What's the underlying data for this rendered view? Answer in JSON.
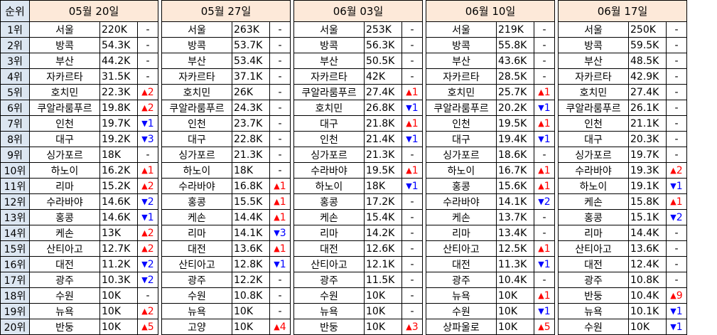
{
  "header": {
    "rank_label": "순위",
    "weeks": [
      "05월 20일",
      "05월 27일",
      "06월 03일",
      "06월 10일",
      "06월 17일"
    ]
  },
  "rows": [
    {
      "rank": "1위",
      "weeks": [
        {
          "city": "서울",
          "value": "220K",
          "change": "-",
          "dir": "none"
        },
        {
          "city": "서울",
          "value": "263K",
          "change": "-",
          "dir": "none"
        },
        {
          "city": "서울",
          "value": "253K",
          "change": "-",
          "dir": "none"
        },
        {
          "city": "서울",
          "value": "219K",
          "change": "-",
          "dir": "none"
        },
        {
          "city": "서울",
          "value": "250K",
          "change": "-",
          "dir": "none"
        }
      ]
    },
    {
      "rank": "2위",
      "weeks": [
        {
          "city": "방콕",
          "value": "54.3K",
          "change": "-",
          "dir": "none"
        },
        {
          "city": "방콕",
          "value": "53.7K",
          "change": "-",
          "dir": "none"
        },
        {
          "city": "방콕",
          "value": "56.3K",
          "change": "-",
          "dir": "none"
        },
        {
          "city": "방콕",
          "value": "55.8K",
          "change": "-",
          "dir": "none"
        },
        {
          "city": "방콕",
          "value": "59.5K",
          "change": "-",
          "dir": "none"
        }
      ]
    },
    {
      "rank": "3위",
      "weeks": [
        {
          "city": "부산",
          "value": "44.2K",
          "change": "-",
          "dir": "none"
        },
        {
          "city": "부산",
          "value": "53.4K",
          "change": "-",
          "dir": "none"
        },
        {
          "city": "부산",
          "value": "50.5K",
          "change": "-",
          "dir": "none"
        },
        {
          "city": "부산",
          "value": "43.6K",
          "change": "-",
          "dir": "none"
        },
        {
          "city": "부산",
          "value": "48.5K",
          "change": "-",
          "dir": "none"
        }
      ]
    },
    {
      "rank": "4위",
      "weeks": [
        {
          "city": "자카르타",
          "value": "31.5K",
          "change": "-",
          "dir": "none"
        },
        {
          "city": "자카르타",
          "value": "37.1K",
          "change": "-",
          "dir": "none"
        },
        {
          "city": "자카르타",
          "value": "42K",
          "change": "-",
          "dir": "none"
        },
        {
          "city": "자카르타",
          "value": "28.5K",
          "change": "-",
          "dir": "none"
        },
        {
          "city": "자카르타",
          "value": "42.9K",
          "change": "-",
          "dir": "none"
        }
      ]
    },
    {
      "rank": "5위",
      "weeks": [
        {
          "city": "호치민",
          "value": "22.3K",
          "change": "2",
          "dir": "up"
        },
        {
          "city": "호치민",
          "value": "26K",
          "change": "-",
          "dir": "none"
        },
        {
          "city": "쿠알라룸푸르",
          "value": "27.4K",
          "change": "1",
          "dir": "up"
        },
        {
          "city": "호치민",
          "value": "25.7K",
          "change": "1",
          "dir": "up"
        },
        {
          "city": "호치민",
          "value": "27.4K",
          "change": "-",
          "dir": "none"
        }
      ]
    },
    {
      "rank": "6위",
      "weeks": [
        {
          "city": "쿠알라룸푸르",
          "value": "19.8K",
          "change": "2",
          "dir": "up"
        },
        {
          "city": "쿠알라룸푸르",
          "value": "24.3K",
          "change": "-",
          "dir": "none"
        },
        {
          "city": "호치민",
          "value": "26.8K",
          "change": "1",
          "dir": "down"
        },
        {
          "city": "쿠알라룸푸르",
          "value": "20.2K",
          "change": "1",
          "dir": "down"
        },
        {
          "city": "쿠알라룸푸르",
          "value": "26.1K",
          "change": "-",
          "dir": "none"
        }
      ]
    },
    {
      "rank": "7위",
      "weeks": [
        {
          "city": "인천",
          "value": "19.7K",
          "change": "1",
          "dir": "down"
        },
        {
          "city": "인천",
          "value": "23.7K",
          "change": "-",
          "dir": "none"
        },
        {
          "city": "대구",
          "value": "21.8K",
          "change": "1",
          "dir": "up"
        },
        {
          "city": "인천",
          "value": "19.5K",
          "change": "1",
          "dir": "up"
        },
        {
          "city": "인천",
          "value": "21.1K",
          "change": "-",
          "dir": "none"
        }
      ]
    },
    {
      "rank": "8위",
      "weeks": [
        {
          "city": "대구",
          "value": "19.2K",
          "change": "3",
          "dir": "down"
        },
        {
          "city": "대구",
          "value": "22.8K",
          "change": "-",
          "dir": "none"
        },
        {
          "city": "인천",
          "value": "21.4K",
          "change": "1",
          "dir": "down"
        },
        {
          "city": "대구",
          "value": "19.4K",
          "change": "1",
          "dir": "down"
        },
        {
          "city": "대구",
          "value": "20.3K",
          "change": "-",
          "dir": "none"
        }
      ]
    },
    {
      "rank": "9위",
      "weeks": [
        {
          "city": "싱가포르",
          "value": "18K",
          "change": "-",
          "dir": "none"
        },
        {
          "city": "싱가포르",
          "value": "21.3K",
          "change": "-",
          "dir": "none"
        },
        {
          "city": "싱가포르",
          "value": "21.3K",
          "change": "-",
          "dir": "none"
        },
        {
          "city": "싱가포르",
          "value": "18.6K",
          "change": "-",
          "dir": "none"
        },
        {
          "city": "싱가포르",
          "value": "19.7K",
          "change": "-",
          "dir": "none"
        }
      ]
    },
    {
      "rank": "10위",
      "weeks": [
        {
          "city": "하노이",
          "value": "16.2K",
          "change": "1",
          "dir": "up"
        },
        {
          "city": "하노이",
          "value": "18K",
          "change": "-",
          "dir": "none"
        },
        {
          "city": "수라바야",
          "value": "19.5K",
          "change": "1",
          "dir": "up"
        },
        {
          "city": "하노이",
          "value": "16.7K",
          "change": "1",
          "dir": "up"
        },
        {
          "city": "수라바야",
          "value": "19.3K",
          "change": "2",
          "dir": "up"
        }
      ]
    },
    {
      "rank": "11위",
      "weeks": [
        {
          "city": "리마",
          "value": "15.2K",
          "change": "2",
          "dir": "up"
        },
        {
          "city": "수라바야",
          "value": "16.8K",
          "change": "1",
          "dir": "up"
        },
        {
          "city": "하노이",
          "value": "18K",
          "change": "1",
          "dir": "down"
        },
        {
          "city": "홍콩",
          "value": "15.6K",
          "change": "1",
          "dir": "up"
        },
        {
          "city": "하노이",
          "value": "19.1K",
          "change": "1",
          "dir": "down"
        }
      ]
    },
    {
      "rank": "12위",
      "weeks": [
        {
          "city": "수라바야",
          "value": "14.6K",
          "change": "2",
          "dir": "down"
        },
        {
          "city": "홍콩",
          "value": "15.5K",
          "change": "1",
          "dir": "up"
        },
        {
          "city": "홍콩",
          "value": "17.2K",
          "change": "-",
          "dir": "none"
        },
        {
          "city": "수라바야",
          "value": "14.1K",
          "change": "2",
          "dir": "down"
        },
        {
          "city": "케손",
          "value": "15.8K",
          "change": "1",
          "dir": "up"
        }
      ]
    },
    {
      "rank": "13위",
      "weeks": [
        {
          "city": "홍콩",
          "value": "14.6K",
          "change": "1",
          "dir": "down"
        },
        {
          "city": "케손",
          "value": "14.4K",
          "change": "1",
          "dir": "up"
        },
        {
          "city": "케손",
          "value": "15.4K",
          "change": "-",
          "dir": "none"
        },
        {
          "city": "케손",
          "value": "13.7K",
          "change": "-",
          "dir": "none"
        },
        {
          "city": "홍콩",
          "value": "15.1K",
          "change": "2",
          "dir": "down"
        }
      ]
    },
    {
      "rank": "14위",
      "weeks": [
        {
          "city": "케손",
          "value": "13K",
          "change": "2",
          "dir": "up"
        },
        {
          "city": "리마",
          "value": "14.1K",
          "change": "3",
          "dir": "down"
        },
        {
          "city": "리마",
          "value": "14.2K",
          "change": "-",
          "dir": "none"
        },
        {
          "city": "리마",
          "value": "13.4K",
          "change": "-",
          "dir": "none"
        },
        {
          "city": "리마",
          "value": "14.4K",
          "change": "-",
          "dir": "none"
        }
      ]
    },
    {
      "rank": "15위",
      "weeks": [
        {
          "city": "산티아고",
          "value": "12.7K",
          "change": "2",
          "dir": "up"
        },
        {
          "city": "대전",
          "value": "13.6K",
          "change": "1",
          "dir": "up"
        },
        {
          "city": "대전",
          "value": "12.6K",
          "change": "-",
          "dir": "none"
        },
        {
          "city": "산티아고",
          "value": "12.5K",
          "change": "1",
          "dir": "up"
        },
        {
          "city": "산티아고",
          "value": "13.6K",
          "change": "-",
          "dir": "none"
        }
      ]
    },
    {
      "rank": "16위",
      "weeks": [
        {
          "city": "대전",
          "value": "11.2K",
          "change": "2",
          "dir": "down"
        },
        {
          "city": "산티아고",
          "value": "12.8K",
          "change": "1",
          "dir": "down"
        },
        {
          "city": "산티아고",
          "value": "12.1K",
          "change": "-",
          "dir": "none"
        },
        {
          "city": "대전",
          "value": "11.3K",
          "change": "1",
          "dir": "down"
        },
        {
          "city": "대전",
          "value": "12.4K",
          "change": "-",
          "dir": "none"
        }
      ]
    },
    {
      "rank": "17위",
      "weeks": [
        {
          "city": "광주",
          "value": "10.3K",
          "change": "2",
          "dir": "down"
        },
        {
          "city": "광주",
          "value": "12.2K",
          "change": "-",
          "dir": "none"
        },
        {
          "city": "광주",
          "value": "11.5K",
          "change": "-",
          "dir": "none"
        },
        {
          "city": "광주",
          "value": "10.4K",
          "change": "-",
          "dir": "none"
        },
        {
          "city": "광주",
          "value": "10.8K",
          "change": "-",
          "dir": "none"
        }
      ]
    },
    {
      "rank": "18위",
      "weeks": [
        {
          "city": "수원",
          "value": "10K",
          "change": "-",
          "dir": "none"
        },
        {
          "city": "수원",
          "value": "10.8K",
          "change": "-",
          "dir": "none"
        },
        {
          "city": "수원",
          "value": "10K",
          "change": "-",
          "dir": "none"
        },
        {
          "city": "뉴욕",
          "value": "10K",
          "change": "1",
          "dir": "up"
        },
        {
          "city": "반둥",
          "value": "10.4K",
          "change": "9",
          "dir": "up"
        }
      ]
    },
    {
      "rank": "19위",
      "weeks": [
        {
          "city": "뉴욕",
          "value": "10K",
          "change": "2",
          "dir": "up"
        },
        {
          "city": "뉴욕",
          "value": "10K",
          "change": "-",
          "dir": "none"
        },
        {
          "city": "뉴욕",
          "value": "10K",
          "change": "-",
          "dir": "none"
        },
        {
          "city": "수원",
          "value": "10K",
          "change": "1",
          "dir": "down"
        },
        {
          "city": "뉴욕",
          "value": "10.1K",
          "change": "1",
          "dir": "down"
        }
      ]
    },
    {
      "rank": "20위",
      "weeks": [
        {
          "city": "반둥",
          "value": "10K",
          "change": "5",
          "dir": "up"
        },
        {
          "city": "고양",
          "value": "10K",
          "change": "4",
          "dir": "up"
        },
        {
          "city": "반둥",
          "value": "10K",
          "change": "3",
          "dir": "up"
        },
        {
          "city": "상파울로",
          "value": "10K",
          "change": "5",
          "dir": "up"
        },
        {
          "city": "수원",
          "value": "10K",
          "change": "1",
          "dir": "down"
        }
      ]
    }
  ]
}
